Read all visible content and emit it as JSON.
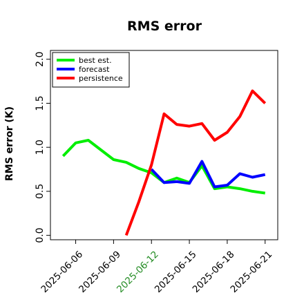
{
  "chart_data": {
    "type": "line",
    "title": "RMS error",
    "xlabel": "",
    "ylabel": "RMS error (K)",
    "x": [
      "2025-06-05",
      "2025-06-06",
      "2025-06-07",
      "2025-06-08",
      "2025-06-09",
      "2025-06-10",
      "2025-06-11",
      "2025-06-12",
      "2025-06-13",
      "2025-06-14",
      "2025-06-15",
      "2025-06-16",
      "2025-06-17",
      "2025-06-18",
      "2025-06-19",
      "2025-06-20",
      "2025-06-21"
    ],
    "xlim": [
      "2025-06-04",
      "2025-06-22"
    ],
    "ylim": [
      -0.05,
      2.1
    ],
    "x_ticks": [
      {
        "date": "2025-06-06",
        "label": "2025-06-06",
        "color": "#000000"
      },
      {
        "date": "2025-06-09",
        "label": "2025-06-09",
        "color": "#000000"
      },
      {
        "date": "2025-06-12",
        "label": "2025-06-12",
        "color": "#228B22"
      },
      {
        "date": "2025-06-15",
        "label": "2025-06-15",
        "color": "#000000"
      },
      {
        "date": "2025-06-18",
        "label": "2025-06-18",
        "color": "#000000"
      },
      {
        "date": "2025-06-21",
        "label": "2025-06-21",
        "color": "#000000"
      }
    ],
    "y_ticks": [
      {
        "value": 0.0,
        "label": "0.0"
      },
      {
        "value": 0.5,
        "label": "0.5"
      },
      {
        "value": 1.0,
        "label": "1.0"
      },
      {
        "value": 1.5,
        "label": "1.5"
      },
      {
        "value": 2.0,
        "label": "2.0"
      }
    ],
    "grid": false,
    "legend_position": "top-left",
    "series": [
      {
        "name": "best est.",
        "color": "#00ee00",
        "points": [
          [
            "2025-06-05",
            0.9
          ],
          [
            "2025-06-06",
            1.05
          ],
          [
            "2025-06-07",
            1.08
          ],
          [
            "2025-06-08",
            0.97
          ],
          [
            "2025-06-09",
            0.86
          ],
          [
            "2025-06-10",
            0.83
          ],
          [
            "2025-06-11",
            0.76
          ],
          [
            "2025-06-12",
            0.71
          ],
          [
            "2025-06-13",
            0.6
          ],
          [
            "2025-06-14",
            0.65
          ],
          [
            "2025-06-15",
            0.6
          ],
          [
            "2025-06-16",
            0.79
          ],
          [
            "2025-06-17",
            0.53
          ],
          [
            "2025-06-18",
            0.55
          ],
          [
            "2025-06-19",
            0.53
          ],
          [
            "2025-06-20",
            0.5
          ],
          [
            "2025-06-21",
            0.48
          ]
        ]
      },
      {
        "name": "forecast",
        "color": "#0000ff",
        "points": [
          [
            "2025-06-12",
            0.75
          ],
          [
            "2025-06-13",
            0.6
          ],
          [
            "2025-06-14",
            0.61
          ],
          [
            "2025-06-15",
            0.59
          ],
          [
            "2025-06-16",
            0.84
          ],
          [
            "2025-06-17",
            0.55
          ],
          [
            "2025-06-18",
            0.57
          ],
          [
            "2025-06-19",
            0.7
          ],
          [
            "2025-06-20",
            0.66
          ],
          [
            "2025-06-21",
            0.69
          ]
        ]
      },
      {
        "name": "persistence",
        "color": "#ff0000",
        "points": [
          [
            "2025-06-10",
            0.0
          ],
          [
            "2025-06-11",
            0.38
          ],
          [
            "2025-06-12",
            0.8
          ],
          [
            "2025-06-13",
            1.38
          ],
          [
            "2025-06-14",
            1.26
          ],
          [
            "2025-06-15",
            1.24
          ],
          [
            "2025-06-16",
            1.27
          ],
          [
            "2025-06-17",
            1.08
          ],
          [
            "2025-06-18",
            1.17
          ],
          [
            "2025-06-19",
            1.35
          ],
          [
            "2025-06-20",
            1.64
          ],
          [
            "2025-06-21",
            1.5
          ]
        ]
      }
    ]
  }
}
